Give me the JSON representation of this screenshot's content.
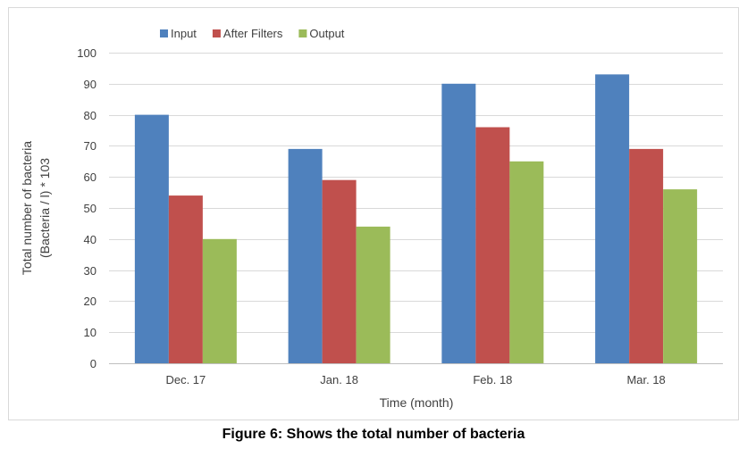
{
  "chart_data": {
    "type": "bar",
    "categories": [
      "Dec. 17",
      "Jan. 18",
      "Feb. 18",
      "Mar. 18"
    ],
    "series": [
      {
        "name": "Input",
        "color": "#4f81bd",
        "values": [
          80,
          69,
          90,
          93
        ]
      },
      {
        "name": "After Filters",
        "color": "#c0504d",
        "values": [
          54,
          59,
          76,
          69
        ]
      },
      {
        "name": "Output",
        "color": "#9bbb59",
        "values": [
          40,
          44,
          65,
          56
        ]
      }
    ],
    "xlabel": "Time (month)",
    "ylabel_lines": [
      "Total number of bacteria",
      "(Bacteria / l) * 103"
    ],
    "ylim": [
      0,
      100
    ],
    "yticks": [
      0,
      10,
      20,
      30,
      40,
      50,
      60,
      70,
      80,
      90,
      100
    ],
    "grid": true,
    "legend_position": "top-left"
  },
  "caption": "Figure 6: Shows the total number of bacteria"
}
